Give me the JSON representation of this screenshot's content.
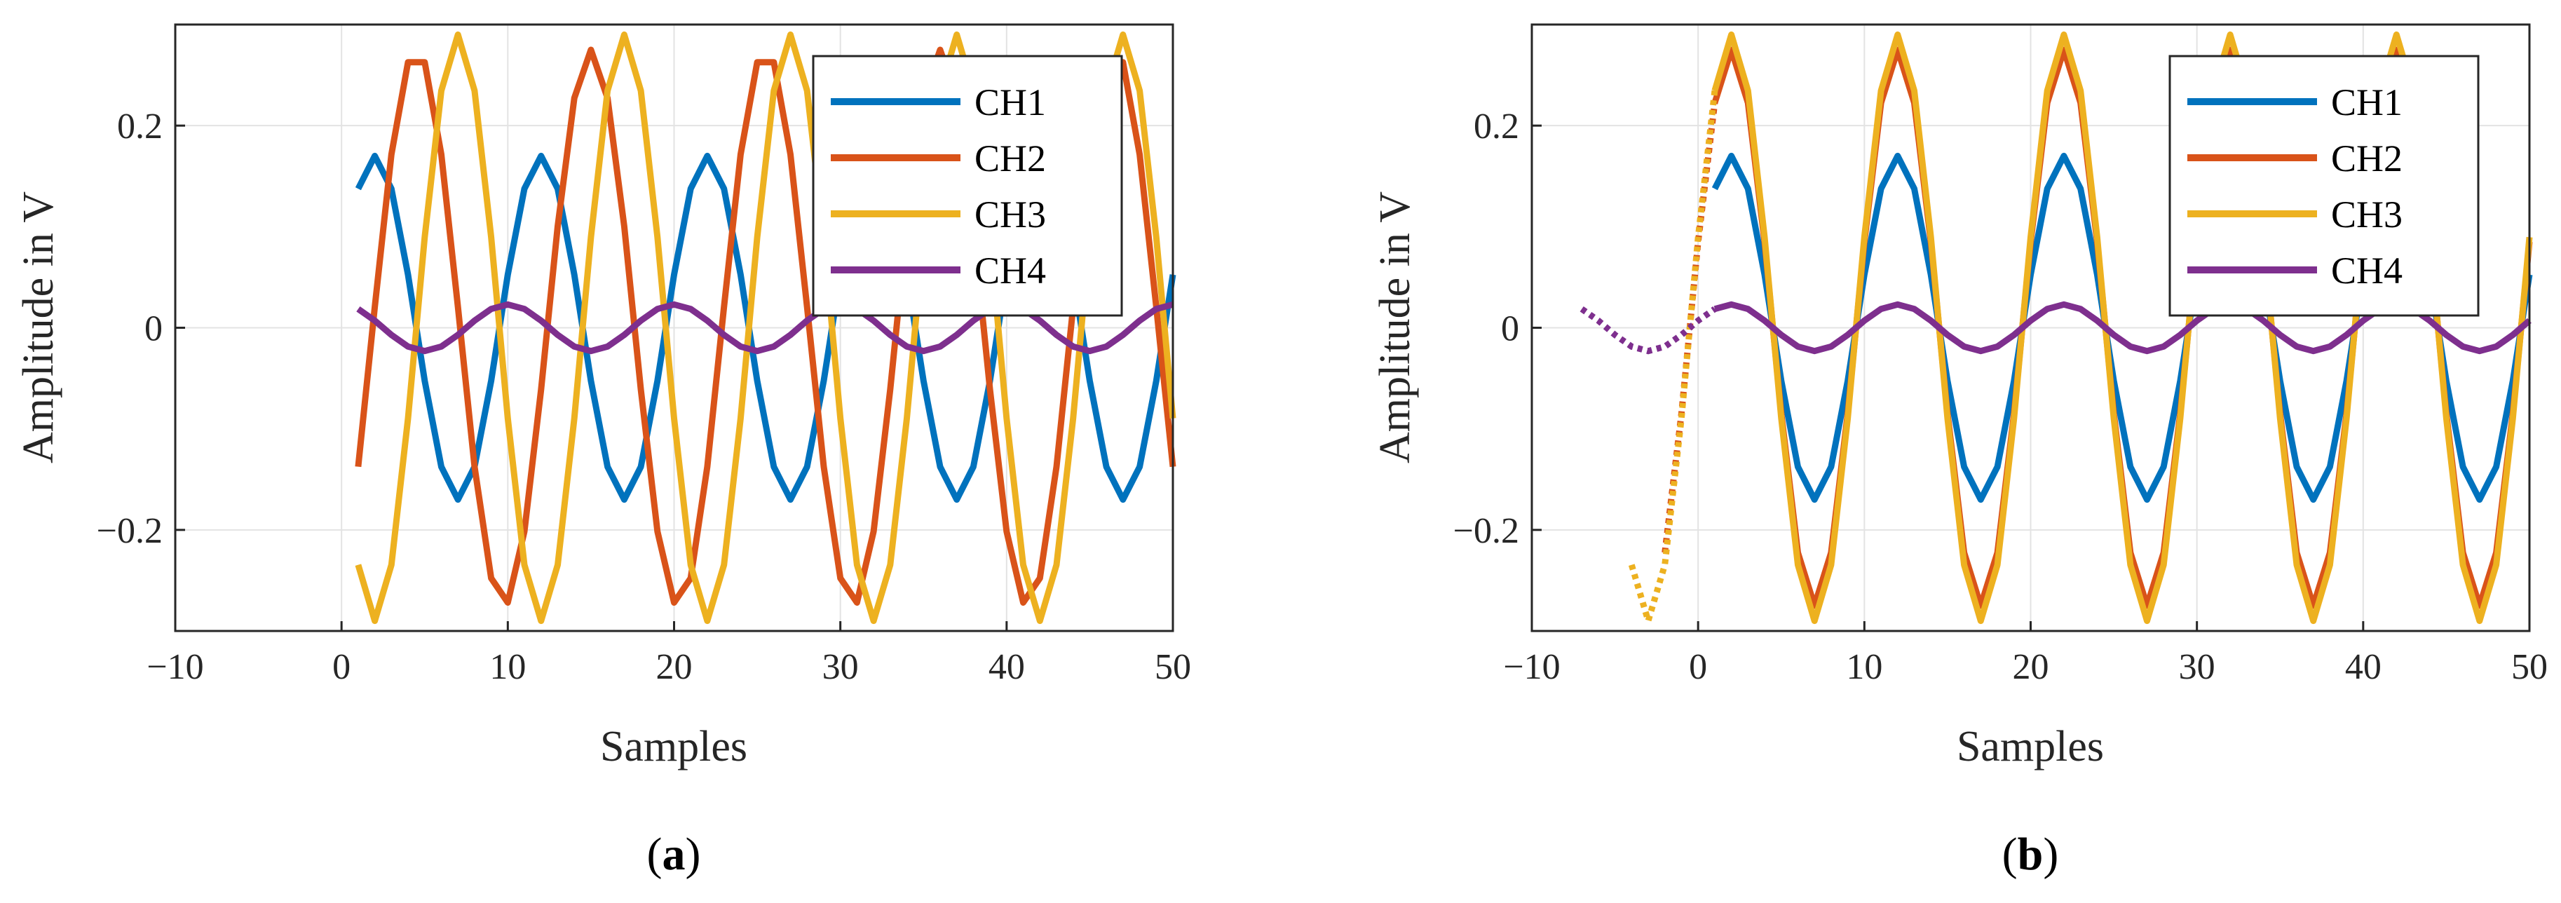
{
  "chart_data": [
    {
      "id": "a",
      "type": "line",
      "caption_open": "(",
      "caption_letter": "a",
      "caption_close": ")",
      "xlabel": "Samples",
      "ylabel": "Amplitude in V",
      "xlim": [
        -10,
        50
      ],
      "ylim": [
        -0.3,
        0.3
      ],
      "xticks": [
        -10,
        0,
        10,
        20,
        30,
        40,
        50
      ],
      "xtick_labels": [
        "−10",
        "0",
        "10",
        "20",
        "30",
        "40",
        "50"
      ],
      "yticks": [
        -0.2,
        0,
        0.2
      ],
      "ytick_labels": [
        "−0.2",
        "0",
        "0.2"
      ],
      "grid": true,
      "legend_position": "top-right",
      "series": [
        {
          "name": "CH1",
          "color": "#0072BD",
          "amplitude": 0.17,
          "period": 10,
          "peak_at": 2,
          "x_start": 1,
          "x_end": 50,
          "dotted_until": null
        },
        {
          "name": "CH2",
          "color": "#D95319",
          "amplitude": 0.275,
          "period": 10.5,
          "peak_at": 4.5,
          "x_start": 1,
          "x_end": 50,
          "dotted_until": null
        },
        {
          "name": "CH3",
          "color": "#EDB120",
          "amplitude": 0.29,
          "period": 10,
          "peak_at": 7,
          "x_start": 1,
          "x_end": 50,
          "dotted_until": null
        },
        {
          "name": "CH4",
          "color": "#7E2F8E",
          "amplitude": 0.023,
          "period": 10,
          "peak_at": 10,
          "x_start": 1,
          "x_end": 50,
          "dotted_until": null
        }
      ]
    },
    {
      "id": "b",
      "type": "line",
      "caption_open": "(",
      "caption_letter": "b",
      "caption_close": ")",
      "xlabel": "Samples",
      "ylabel": "Amplitude in V",
      "xlim": [
        -10,
        50
      ],
      "ylim": [
        -0.3,
        0.3
      ],
      "xticks": [
        -10,
        0,
        10,
        20,
        30,
        40,
        50
      ],
      "xtick_labels": [
        "−10",
        "0",
        "10",
        "20",
        "30",
        "40",
        "50"
      ],
      "yticks": [
        -0.2,
        0,
        0.2
      ],
      "ytick_labels": [
        "−0.2",
        "0",
        "0.2"
      ],
      "grid": true,
      "legend_position": "top-right",
      "series": [
        {
          "name": "CH1",
          "color": "#0072BD",
          "amplitude": 0.17,
          "period": 10,
          "peak_at": 2,
          "x_start": 1,
          "x_end": 50,
          "dotted_until": null
        },
        {
          "name": "CH2",
          "color": "#D95319",
          "amplitude": 0.275,
          "period": 10,
          "peak_at": 2,
          "x_start": -2,
          "x_end": 50,
          "dotted_until": 1
        },
        {
          "name": "CH3",
          "color": "#EDB120",
          "amplitude": 0.29,
          "period": 10,
          "peak_at": 2,
          "x_start": -4,
          "x_end": 50,
          "dotted_until": 1
        },
        {
          "name": "CH4",
          "color": "#7E2F8E",
          "amplitude": 0.023,
          "period": 10,
          "peak_at": 2,
          "x_start": -7,
          "x_end": 50,
          "dotted_until": 1
        }
      ]
    }
  ]
}
